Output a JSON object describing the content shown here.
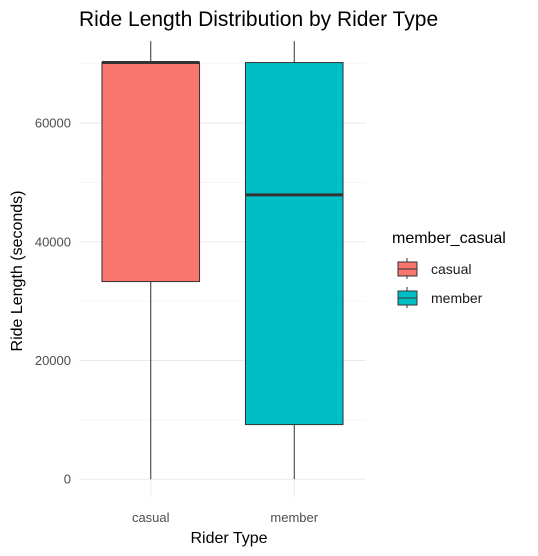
{
  "chart_data": {
    "type": "boxplot",
    "title": "Ride Length Distribution by Rider Type",
    "xlabel": "Rider Type",
    "ylabel": "Ride Length (seconds)",
    "categories": [
      "casual",
      "member"
    ],
    "ylim": [
      -3000,
      74000
    ],
    "yticks": [
      0,
      20000,
      40000,
      60000
    ],
    "ytick_labels": [
      "0",
      "20000",
      "40000",
      "60000"
    ],
    "grid": true,
    "boxes": [
      {
        "name": "casual",
        "color": "#F8766D",
        "min": 0,
        "q1": 33300,
        "median": 70200,
        "q3": 70200,
        "max": 73800
      },
      {
        "name": "member",
        "color": "#00BFC4",
        "min": 0,
        "q1": 9200,
        "median": 47900,
        "q3": 70200,
        "max": 73800
      }
    ],
    "legend": {
      "title": "member_casual",
      "position": "right",
      "entries": [
        {
          "label": "casual",
          "color": "#F8766D"
        },
        {
          "label": "member",
          "color": "#00BFC4"
        }
      ]
    }
  }
}
